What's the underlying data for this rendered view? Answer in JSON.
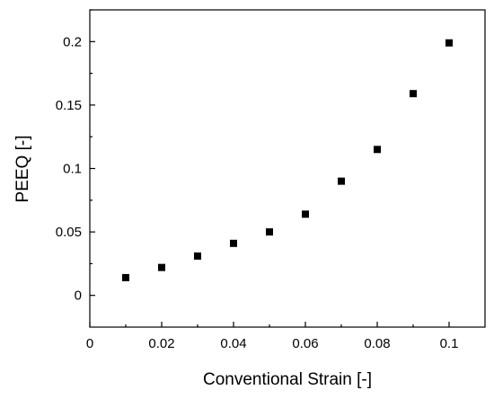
{
  "chart_data": {
    "type": "scatter",
    "xlabel": "Conventional Strain [-]",
    "ylabel": "PEEQ [-]",
    "xlim": [
      0,
      0.11
    ],
    "ylim": [
      -0.025,
      0.225
    ],
    "xticks": [
      0,
      0.02,
      0.04,
      0.06,
      0.08,
      0.1
    ],
    "xtick_labels": [
      "0",
      "0.02",
      "0.04",
      "0.06",
      "0.08",
      "0.1"
    ],
    "yticks": [
      0,
      0.05,
      0.1,
      0.15,
      0.2
    ],
    "ytick_labels": [
      "0",
      "0.05",
      "0.1",
      "0.15",
      "0.2"
    ],
    "grid": false,
    "marker": "square",
    "marker_color": "#000000",
    "series": [
      {
        "x": [
          0.01,
          0.02,
          0.03,
          0.04,
          0.05,
          0.06,
          0.07,
          0.08,
          0.09,
          0.1
        ],
        "y": [
          0.014,
          0.022,
          0.031,
          0.041,
          0.05,
          0.064,
          0.09,
          0.115,
          0.159,
          0.199
        ]
      }
    ]
  }
}
